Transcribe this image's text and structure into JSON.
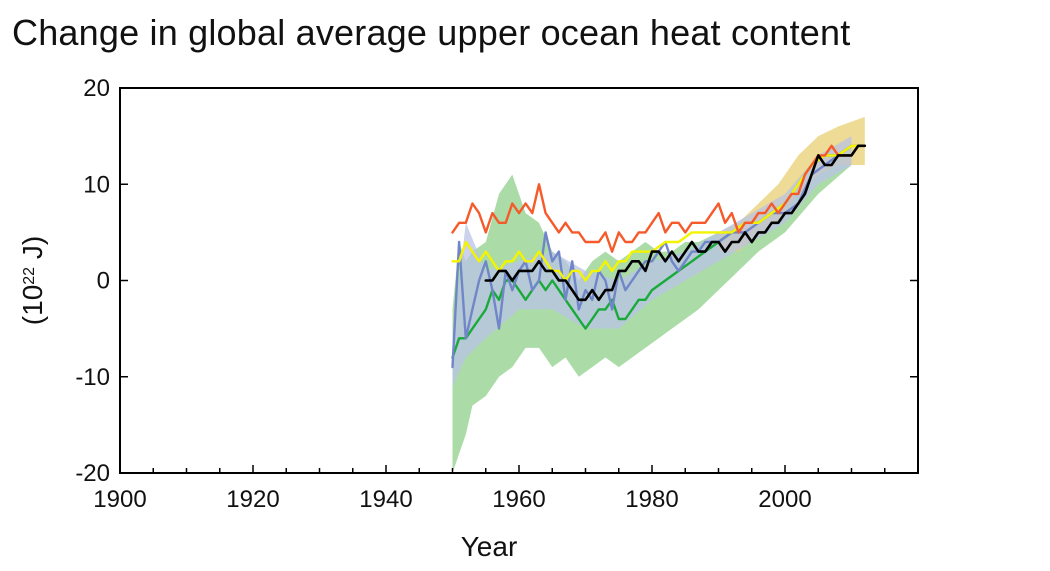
{
  "chart_data": {
    "type": "line",
    "title": "Change in global average upper ocean heat content",
    "xlabel": "Year",
    "ylabel_base": "(10",
    "ylabel_exp": "22",
    "ylabel_unit": " J)",
    "xlim": [
      1900,
      2020
    ],
    "ylim": [
      -20,
      20
    ],
    "xticks": [
      1900,
      1920,
      1940,
      1960,
      1980,
      2000
    ],
    "yticks": [
      -20,
      -10,
      0,
      10,
      20
    ],
    "grid": false,
    "bands": [
      {
        "name": "green-uncertainty",
        "color": "#8fd08a",
        "x": [
          1950,
          1951,
          1952,
          1953,
          1955,
          1957,
          1959,
          1961,
          1963,
          1965,
          1967,
          1969,
          1971,
          1973,
          1975,
          1977,
          1979,
          1981,
          1983,
          1985,
          1987,
          1990,
          1993,
          1996,
          2000,
          2005,
          2010
        ],
        "upper": [
          -3,
          4,
          2,
          3,
          4,
          9,
          11,
          7,
          6,
          3,
          2,
          0,
          2,
          3,
          2,
          3,
          4,
          3,
          3,
          4,
          4,
          5,
          5,
          6,
          8,
          11,
          14
        ],
        "lower": [
          -20,
          -18,
          -16,
          -13,
          -12,
          -10,
          -9,
          -7,
          -7,
          -9,
          -8,
          -10,
          -9,
          -8,
          -9,
          -8,
          -7,
          -6,
          -5,
          -4,
          -3,
          -1,
          1,
          3,
          5,
          9,
          12
        ]
      },
      {
        "name": "yellow-uncertainty",
        "color": "#e8cf72",
        "x": [
          1990,
          1993,
          1996,
          1999,
          2002,
          2005,
          2008,
          2012
        ],
        "upper": [
          5,
          6,
          8,
          10,
          13,
          15,
          16,
          17
        ],
        "lower": [
          3,
          3,
          5,
          6,
          9,
          11,
          12,
          12
        ]
      },
      {
        "name": "blue-uncertainty",
        "color": "#b9c3e6",
        "x": [
          1950,
          1952,
          1955,
          1960,
          1965,
          1970,
          1975,
          1980,
          1985,
          1990,
          1995,
          2000,
          2005,
          2010
        ],
        "upper": [
          -6,
          6,
          1,
          2,
          3,
          1,
          0,
          2,
          3,
          5,
          7,
          9,
          13,
          15
        ],
        "lower": [
          -11,
          -8,
          -6,
          -3,
          -3,
          -5,
          -5,
          -2,
          0,
          2,
          4,
          6,
          10,
          12
        ]
      }
    ],
    "series": [
      {
        "name": "green",
        "color": "#1aaa3a",
        "x": [
          1950,
          1951,
          1952,
          1953,
          1954,
          1955,
          1956,
          1957,
          1958,
          1959,
          1960,
          1961,
          1962,
          1963,
          1964,
          1965,
          1966,
          1967,
          1968,
          1969,
          1970,
          1971,
          1972,
          1973,
          1974,
          1975,
          1976,
          1977,
          1978,
          1979,
          1980,
          1982,
          1984,
          1986,
          1988,
          1990,
          1992,
          1994,
          1996,
          1998,
          2000,
          2002,
          2004,
          2006,
          2008,
          2010
        ],
        "values": [
          -8,
          -6,
          -6,
          -5,
          -4,
          -3,
          -1,
          -2,
          0,
          0,
          -1,
          -2,
          -1,
          0,
          -1,
          0,
          -1,
          -2,
          -3,
          -4,
          -5,
          -4,
          -3,
          -3,
          -2,
          -4,
          -4,
          -3,
          -2,
          -2,
          -1,
          0,
          1,
          2,
          3,
          4,
          5,
          6,
          6,
          7,
          8,
          10,
          12,
          13,
          13,
          14
        ]
      },
      {
        "name": "blue",
        "color": "#7086c8",
        "x": [
          1950,
          1951,
          1952,
          1953,
          1954,
          1955,
          1956,
          1957,
          1958,
          1959,
          1960,
          1961,
          1962,
          1963,
          1964,
          1965,
          1966,
          1967,
          1968,
          1969,
          1970,
          1971,
          1972,
          1973,
          1974,
          1975,
          1976,
          1977,
          1978,
          1979,
          1980,
          1981,
          1982,
          1983,
          1984,
          1985,
          1986,
          1987,
          1988,
          1989,
          1990,
          1992,
          1994,
          1996,
          1998,
          2000,
          2002,
          2004,
          2006,
          2008,
          2010,
          2012
        ],
        "values": [
          -9,
          4,
          -6,
          -3,
          0,
          2,
          -1,
          -5,
          1,
          -1,
          1,
          2,
          -1,
          0,
          5,
          2,
          3,
          -2,
          2,
          -3,
          -1,
          -2,
          1,
          0,
          -3,
          1,
          -1,
          0,
          1,
          2,
          2,
          3,
          4,
          2,
          1,
          2,
          3,
          3,
          4,
          4,
          4,
          5,
          5,
          6,
          7,
          7,
          8,
          11,
          12,
          13,
          14,
          14
        ]
      },
      {
        "name": "yellow",
        "color": "#f4f400",
        "x": [
          1950,
          1951,
          1952,
          1953,
          1954,
          1955,
          1956,
          1957,
          1958,
          1959,
          1960,
          1961,
          1962,
          1963,
          1964,
          1965,
          1966,
          1967,
          1968,
          1969,
          1970,
          1971,
          1972,
          1973,
          1974,
          1975,
          1976,
          1977,
          1978,
          1979,
          1980,
          1982,
          1984,
          1986,
          1988,
          1990,
          1992,
          1994,
          1996,
          1998,
          2000,
          2002,
          2004,
          2006,
          2008,
          2010,
          2012
        ],
        "values": [
          2,
          2,
          4,
          3,
          2,
          3,
          2,
          1,
          2,
          2,
          3,
          2,
          2,
          3,
          2,
          1,
          1,
          0,
          1,
          1,
          0,
          1,
          1,
          2,
          1,
          2,
          2,
          3,
          3,
          3,
          3,
          4,
          4,
          5,
          5,
          5,
          5,
          6,
          6,
          7,
          8,
          10,
          12,
          13,
          13,
          14,
          14
        ]
      },
      {
        "name": "orange",
        "color": "#f6592a",
        "x": [
          1950,
          1951,
          1952,
          1953,
          1954,
          1955,
          1956,
          1957,
          1958,
          1959,
          1960,
          1961,
          1962,
          1963,
          1964,
          1965,
          1966,
          1967,
          1968,
          1969,
          1970,
          1971,
          1972,
          1973,
          1974,
          1975,
          1976,
          1977,
          1978,
          1979,
          1980,
          1981,
          1982,
          1983,
          1984,
          1985,
          1986,
          1987,
          1988,
          1989,
          1990,
          1991,
          1992,
          1993,
          1994,
          1995,
          1996,
          1997,
          1998,
          1999,
          2000,
          2001,
          2002,
          2003,
          2004,
          2005,
          2006,
          2007,
          2008,
          2009,
          2010,
          2011,
          2012
        ],
        "values": [
          5,
          6,
          6,
          8,
          7,
          5,
          7,
          6,
          6,
          8,
          7,
          8,
          7,
          10,
          7,
          6,
          5,
          6,
          5,
          5,
          4,
          4,
          4,
          5,
          3,
          5,
          4,
          4,
          5,
          5,
          6,
          7,
          5,
          6,
          6,
          5,
          6,
          6,
          6,
          7,
          8,
          6,
          7,
          5,
          6,
          6,
          7,
          7,
          8,
          7,
          8,
          9,
          9,
          11,
          12,
          13,
          13,
          14,
          13,
          13,
          13,
          14,
          14
        ]
      },
      {
        "name": "black",
        "color": "#000000",
        "x": [
          1955,
          1956,
          1957,
          1958,
          1959,
          1960,
          1961,
          1962,
          1963,
          1964,
          1965,
          1966,
          1967,
          1968,
          1969,
          1970,
          1971,
          1972,
          1973,
          1974,
          1975,
          1976,
          1977,
          1978,
          1979,
          1980,
          1981,
          1982,
          1983,
          1984,
          1985,
          1986,
          1987,
          1988,
          1989,
          1990,
          1991,
          1992,
          1993,
          1994,
          1995,
          1996,
          1997,
          1998,
          1999,
          2000,
          2001,
          2002,
          2003,
          2004,
          2005,
          2006,
          2007,
          2008,
          2009,
          2010,
          2011,
          2012
        ],
        "values": [
          0,
          0,
          1,
          1,
          0,
          1,
          1,
          1,
          2,
          1,
          1,
          0,
          0,
          -1,
          -2,
          -2,
          -1,
          -2,
          -1,
          -1,
          1,
          1,
          2,
          2,
          1,
          3,
          3,
          2,
          3,
          2,
          3,
          4,
          3,
          3,
          4,
          4,
          3,
          4,
          4,
          5,
          4,
          5,
          5,
          6,
          6,
          7,
          7,
          8,
          9,
          11,
          13,
          12,
          12,
          13,
          13,
          13,
          14,
          14
        ]
      }
    ]
  }
}
